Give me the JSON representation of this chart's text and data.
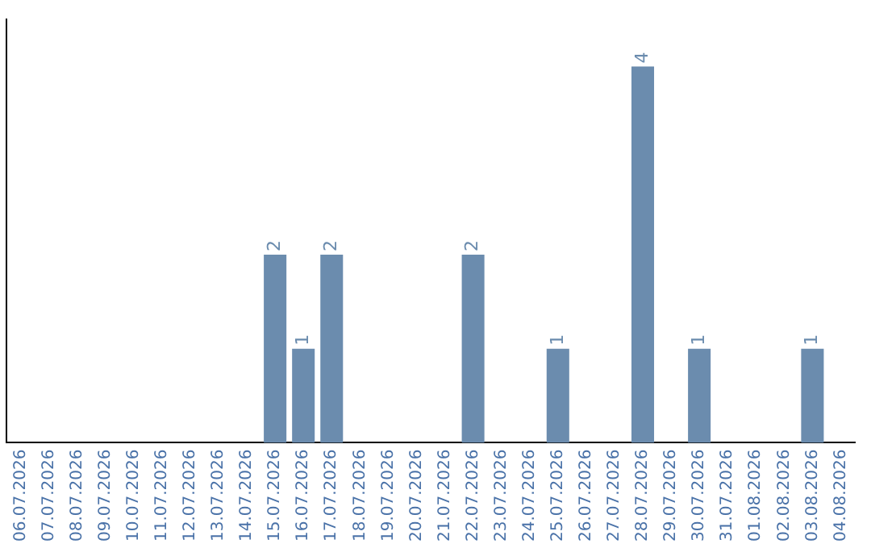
{
  "chart_data": {
    "type": "bar",
    "categories": [
      "06.07.2026",
      "07.07.2026",
      "08.07.2026",
      "09.07.2026",
      "10.07.2026",
      "11.07.2026",
      "12.07.2026",
      "13.07.2026",
      "14.07.2026",
      "15.07.2026",
      "16.07.2026",
      "17.07.2026",
      "18.07.2026",
      "19.07.2026",
      "20.07.2026",
      "21.07.2026",
      "22.07.2026",
      "23.07.2026",
      "24.07.2026",
      "25.07.2026",
      "26.07.2026",
      "27.07.2026",
      "28.07.2026",
      "29.07.2026",
      "30.07.2026",
      "31.07.2026",
      "01.08.2026",
      "02.08.2026",
      "03.08.2026",
      "04.08.2026"
    ],
    "values": [
      0,
      0,
      0,
      0,
      0,
      0,
      0,
      0,
      0,
      2,
      1,
      2,
      0,
      0,
      0,
      0,
      2,
      0,
      0,
      1,
      0,
      0,
      4,
      0,
      1,
      0,
      0,
      0,
      1,
      0
    ],
    "value_labels": [
      null,
      null,
      null,
      null,
      null,
      null,
      null,
      null,
      null,
      "2",
      "1",
      "2",
      null,
      null,
      null,
      null,
      "2",
      null,
      null,
      "1",
      null,
      null,
      "4",
      null,
      "1",
      null,
      null,
      null,
      "1",
      null
    ],
    "color": "#6b8cae",
    "grid": false,
    "legend": false,
    "tick_labels": "x"
  }
}
